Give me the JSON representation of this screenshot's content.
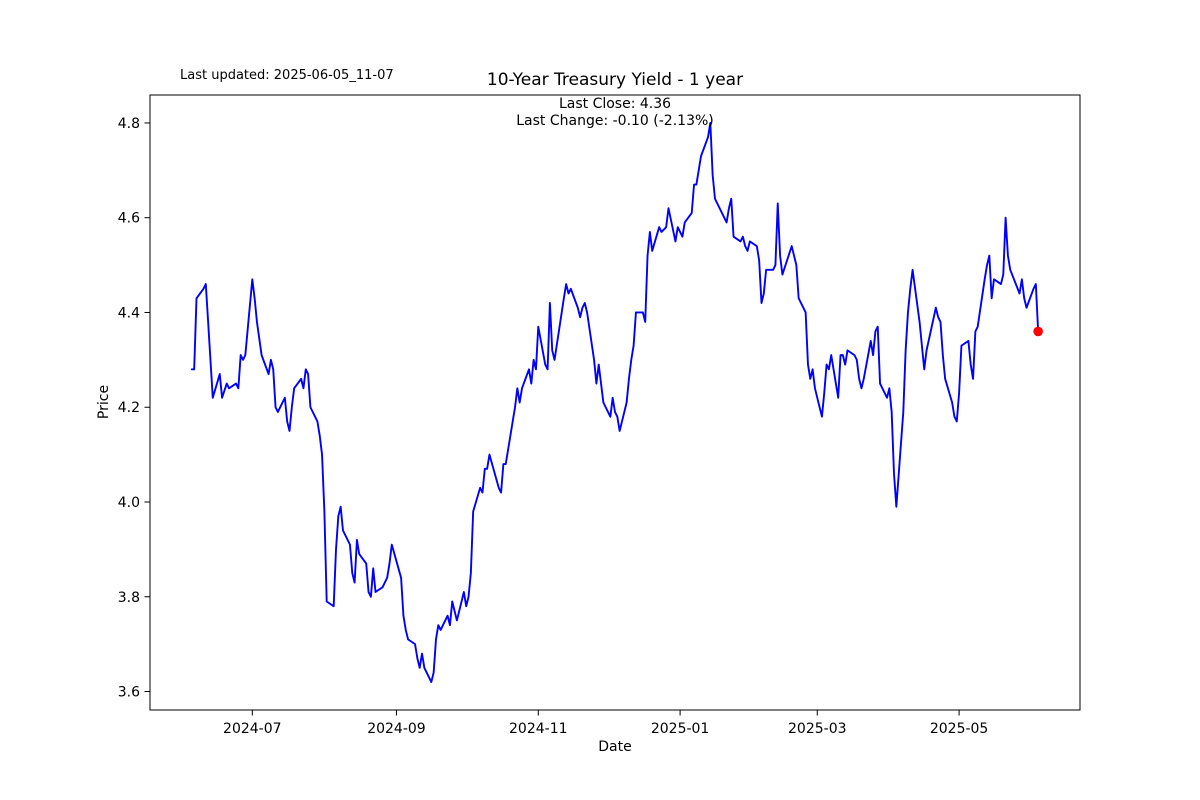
{
  "figure": {
    "last_updated": "Last updated: 2025-06-05_11-07",
    "title": "10-Year Treasury Yield - 1 year",
    "subtitle_line1": "Last Close: 4.36",
    "subtitle_line2": "Last Change: -0.10 (-2.13%)",
    "xlabel": "Date",
    "ylabel": "Price"
  },
  "chart_data": {
    "type": "line",
    "title": "10-Year Treasury Yield - 1 year",
    "xlabel": "Date",
    "ylabel": "Price",
    "grid": false,
    "legend": "none",
    "line_color": "#0000ff",
    "line_width": 1.9,
    "last_point_marker_color": "#ff0000",
    "spine_color": "#000000",
    "last_close": 4.36,
    "last_change_text": "-0.10 (-2.13%)",
    "ylim": [
      3.561,
      4.859
    ],
    "xlim": [
      "2024-05-18",
      "2025-06-22"
    ],
    "y_ticks": [
      3.6,
      3.8,
      4.0,
      4.2,
      4.4,
      4.6,
      4.8
    ],
    "x_ticks": [
      {
        "date": "2024-07-01",
        "label": "2024-07"
      },
      {
        "date": "2024-09-01",
        "label": "2024-09"
      },
      {
        "date": "2024-11-01",
        "label": "2024-11"
      },
      {
        "date": "2025-01-01",
        "label": "2025-01"
      },
      {
        "date": "2025-03-01",
        "label": "2025-03"
      },
      {
        "date": "2025-05-01",
        "label": "2025-05"
      }
    ],
    "series": [
      {
        "name": "10-Year Treasury Yield",
        "points": [
          [
            "2024-06-05",
            4.28
          ],
          [
            "2024-06-06",
            4.28
          ],
          [
            "2024-06-07",
            4.43
          ],
          [
            "2024-06-10",
            4.45
          ],
          [
            "2024-06-11",
            4.46
          ],
          [
            "2024-06-12",
            4.38
          ],
          [
            "2024-06-13",
            4.3
          ],
          [
            "2024-06-14",
            4.22
          ],
          [
            "2024-06-17",
            4.27
          ],
          [
            "2024-06-18",
            4.22
          ],
          [
            "2024-06-20",
            4.25
          ],
          [
            "2024-06-21",
            4.24
          ],
          [
            "2024-06-24",
            4.25
          ],
          [
            "2024-06-25",
            4.24
          ],
          [
            "2024-06-26",
            4.31
          ],
          [
            "2024-06-27",
            4.3
          ],
          [
            "2024-06-28",
            4.31
          ],
          [
            "2024-07-01",
            4.47
          ],
          [
            "2024-07-02",
            4.43
          ],
          [
            "2024-07-03",
            4.38
          ],
          [
            "2024-07-05",
            4.31
          ],
          [
            "2024-07-08",
            4.27
          ],
          [
            "2024-07-09",
            4.3
          ],
          [
            "2024-07-10",
            4.28
          ],
          [
            "2024-07-11",
            4.2
          ],
          [
            "2024-07-12",
            4.19
          ],
          [
            "2024-07-15",
            4.22
          ],
          [
            "2024-07-16",
            4.17
          ],
          [
            "2024-07-17",
            4.15
          ],
          [
            "2024-07-18",
            4.2
          ],
          [
            "2024-07-19",
            4.24
          ],
          [
            "2024-07-22",
            4.26
          ],
          [
            "2024-07-23",
            4.24
          ],
          [
            "2024-07-24",
            4.28
          ],
          [
            "2024-07-25",
            4.27
          ],
          [
            "2024-07-26",
            4.2
          ],
          [
            "2024-07-29",
            4.17
          ],
          [
            "2024-07-30",
            4.14
          ],
          [
            "2024-07-31",
            4.1
          ],
          [
            "2024-08-01",
            3.98
          ],
          [
            "2024-08-02",
            3.79
          ],
          [
            "2024-08-05",
            3.78
          ],
          [
            "2024-08-06",
            3.9
          ],
          [
            "2024-08-07",
            3.97
          ],
          [
            "2024-08-08",
            3.99
          ],
          [
            "2024-08-09",
            3.94
          ],
          [
            "2024-08-12",
            3.91
          ],
          [
            "2024-08-13",
            3.85
          ],
          [
            "2024-08-14",
            3.83
          ],
          [
            "2024-08-15",
            3.92
          ],
          [
            "2024-08-16",
            3.89
          ],
          [
            "2024-08-19",
            3.87
          ],
          [
            "2024-08-20",
            3.81
          ],
          [
            "2024-08-21",
            3.8
          ],
          [
            "2024-08-22",
            3.86
          ],
          [
            "2024-08-23",
            3.81
          ],
          [
            "2024-08-26",
            3.82
          ],
          [
            "2024-08-27",
            3.83
          ],
          [
            "2024-08-28",
            3.84
          ],
          [
            "2024-08-29",
            3.87
          ],
          [
            "2024-08-30",
            3.91
          ],
          [
            "2024-09-03",
            3.84
          ],
          [
            "2024-09-04",
            3.76
          ],
          [
            "2024-09-05",
            3.73
          ],
          [
            "2024-09-06",
            3.71
          ],
          [
            "2024-09-09",
            3.7
          ],
          [
            "2024-09-10",
            3.67
          ],
          [
            "2024-09-11",
            3.65
          ],
          [
            "2024-09-12",
            3.68
          ],
          [
            "2024-09-13",
            3.65
          ],
          [
            "2024-09-16",
            3.62
          ],
          [
            "2024-09-17",
            3.64
          ],
          [
            "2024-09-18",
            3.71
          ],
          [
            "2024-09-19",
            3.74
          ],
          [
            "2024-09-20",
            3.73
          ],
          [
            "2024-09-23",
            3.76
          ],
          [
            "2024-09-24",
            3.74
          ],
          [
            "2024-09-25",
            3.79
          ],
          [
            "2024-09-26",
            3.77
          ],
          [
            "2024-09-27",
            3.75
          ],
          [
            "2024-09-30",
            3.81
          ],
          [
            "2024-10-01",
            3.78
          ],
          [
            "2024-10-02",
            3.8
          ],
          [
            "2024-10-03",
            3.85
          ],
          [
            "2024-10-04",
            3.98
          ],
          [
            "2024-10-07",
            4.03
          ],
          [
            "2024-10-08",
            4.02
          ],
          [
            "2024-10-09",
            4.07
          ],
          [
            "2024-10-10",
            4.07
          ],
          [
            "2024-10-11",
            4.1
          ],
          [
            "2024-10-15",
            4.03
          ],
          [
            "2024-10-16",
            4.02
          ],
          [
            "2024-10-17",
            4.08
          ],
          [
            "2024-10-18",
            4.08
          ],
          [
            "2024-10-21",
            4.17
          ],
          [
            "2024-10-22",
            4.2
          ],
          [
            "2024-10-23",
            4.24
          ],
          [
            "2024-10-24",
            4.21
          ],
          [
            "2024-10-25",
            4.24
          ],
          [
            "2024-10-28",
            4.28
          ],
          [
            "2024-10-29",
            4.25
          ],
          [
            "2024-10-30",
            4.3
          ],
          [
            "2024-10-31",
            4.28
          ],
          [
            "2024-11-01",
            4.37
          ],
          [
            "2024-11-04",
            4.29
          ],
          [
            "2024-11-05",
            4.28
          ],
          [
            "2024-11-06",
            4.42
          ],
          [
            "2024-11-07",
            4.32
          ],
          [
            "2024-11-08",
            4.3
          ],
          [
            "2024-11-12",
            4.43
          ],
          [
            "2024-11-13",
            4.46
          ],
          [
            "2024-11-14",
            4.44
          ],
          [
            "2024-11-15",
            4.45
          ],
          [
            "2024-11-18",
            4.41
          ],
          [
            "2024-11-19",
            4.39
          ],
          [
            "2024-11-20",
            4.41
          ],
          [
            "2024-11-21",
            4.42
          ],
          [
            "2024-11-22",
            4.4
          ],
          [
            "2024-11-25",
            4.3
          ],
          [
            "2024-11-26",
            4.25
          ],
          [
            "2024-11-27",
            4.29
          ],
          [
            "2024-11-29",
            4.21
          ],
          [
            "2024-12-02",
            4.18
          ],
          [
            "2024-12-03",
            4.22
          ],
          [
            "2024-12-04",
            4.19
          ],
          [
            "2024-12-05",
            4.18
          ],
          [
            "2024-12-06",
            4.15
          ],
          [
            "2024-12-09",
            4.21
          ],
          [
            "2024-12-10",
            4.26
          ],
          [
            "2024-12-11",
            4.3
          ],
          [
            "2024-12-12",
            4.33
          ],
          [
            "2024-12-13",
            4.4
          ],
          [
            "2024-12-16",
            4.4
          ],
          [
            "2024-12-17",
            4.38
          ],
          [
            "2024-12-18",
            4.52
          ],
          [
            "2024-12-19",
            4.57
          ],
          [
            "2024-12-20",
            4.53
          ],
          [
            "2024-12-23",
            4.58
          ],
          [
            "2024-12-24",
            4.57
          ],
          [
            "2024-12-26",
            4.58
          ],
          [
            "2024-12-27",
            4.62
          ],
          [
            "2024-12-30",
            4.55
          ],
          [
            "2024-12-31",
            4.58
          ],
          [
            "2025-01-02",
            4.56
          ],
          [
            "2025-01-03",
            4.59
          ],
          [
            "2025-01-06",
            4.61
          ],
          [
            "2025-01-07",
            4.67
          ],
          [
            "2025-01-08",
            4.67
          ],
          [
            "2025-01-10",
            4.73
          ],
          [
            "2025-01-13",
            4.77
          ],
          [
            "2025-01-14",
            4.8
          ],
          [
            "2025-01-15",
            4.69
          ],
          [
            "2025-01-16",
            4.64
          ],
          [
            "2025-01-17",
            4.63
          ],
          [
            "2025-01-21",
            4.59
          ],
          [
            "2025-01-22",
            4.62
          ],
          [
            "2025-01-23",
            4.64
          ],
          [
            "2025-01-24",
            4.56
          ],
          [
            "2025-01-27",
            4.55
          ],
          [
            "2025-01-28",
            4.56
          ],
          [
            "2025-01-29",
            4.54
          ],
          [
            "2025-01-30",
            4.53
          ],
          [
            "2025-01-31",
            4.55
          ],
          [
            "2025-02-03",
            4.54
          ],
          [
            "2025-02-04",
            4.51
          ],
          [
            "2025-02-05",
            4.42
          ],
          [
            "2025-02-06",
            4.44
          ],
          [
            "2025-02-07",
            4.49
          ],
          [
            "2025-02-10",
            4.49
          ],
          [
            "2025-02-11",
            4.5
          ],
          [
            "2025-02-12",
            4.63
          ],
          [
            "2025-02-13",
            4.52
          ],
          [
            "2025-02-14",
            4.48
          ],
          [
            "2025-02-18",
            4.54
          ],
          [
            "2025-02-19",
            4.52
          ],
          [
            "2025-02-20",
            4.5
          ],
          [
            "2025-02-21",
            4.43
          ],
          [
            "2025-02-24",
            4.4
          ],
          [
            "2025-02-25",
            4.29
          ],
          [
            "2025-02-26",
            4.26
          ],
          [
            "2025-02-27",
            4.28
          ],
          [
            "2025-02-28",
            4.24
          ],
          [
            "2025-03-03",
            4.18
          ],
          [
            "2025-03-04",
            4.23
          ],
          [
            "2025-03-05",
            4.29
          ],
          [
            "2025-03-06",
            4.28
          ],
          [
            "2025-03-07",
            4.31
          ],
          [
            "2025-03-10",
            4.22
          ],
          [
            "2025-03-11",
            4.31
          ],
          [
            "2025-03-12",
            4.31
          ],
          [
            "2025-03-13",
            4.29
          ],
          [
            "2025-03-14",
            4.32
          ],
          [
            "2025-03-17",
            4.31
          ],
          [
            "2025-03-18",
            4.3
          ],
          [
            "2025-03-19",
            4.26
          ],
          [
            "2025-03-20",
            4.24
          ],
          [
            "2025-03-21",
            4.26
          ],
          [
            "2025-03-24",
            4.34
          ],
          [
            "2025-03-25",
            4.31
          ],
          [
            "2025-03-26",
            4.36
          ],
          [
            "2025-03-27",
            4.37
          ],
          [
            "2025-03-28",
            4.25
          ],
          [
            "2025-03-31",
            4.22
          ],
          [
            "2025-04-01",
            4.24
          ],
          [
            "2025-04-02",
            4.19
          ],
          [
            "2025-04-03",
            4.06
          ],
          [
            "2025-04-04",
            3.99
          ],
          [
            "2025-04-07",
            4.19
          ],
          [
            "2025-04-08",
            4.32
          ],
          [
            "2025-04-09",
            4.4
          ],
          [
            "2025-04-10",
            4.45
          ],
          [
            "2025-04-11",
            4.49
          ],
          [
            "2025-04-14",
            4.38
          ],
          [
            "2025-04-15",
            4.33
          ],
          [
            "2025-04-16",
            4.28
          ],
          [
            "2025-04-17",
            4.32
          ],
          [
            "2025-04-21",
            4.41
          ],
          [
            "2025-04-22",
            4.39
          ],
          [
            "2025-04-23",
            4.38
          ],
          [
            "2025-04-24",
            4.31
          ],
          [
            "2025-04-25",
            4.26
          ],
          [
            "2025-04-28",
            4.21
          ],
          [
            "2025-04-29",
            4.18
          ],
          [
            "2025-04-30",
            4.17
          ],
          [
            "2025-05-01",
            4.23
          ],
          [
            "2025-05-02",
            4.33
          ],
          [
            "2025-05-05",
            4.34
          ],
          [
            "2025-05-06",
            4.29
          ],
          [
            "2025-05-07",
            4.26
          ],
          [
            "2025-05-08",
            4.36
          ],
          [
            "2025-05-09",
            4.37
          ],
          [
            "2025-05-12",
            4.47
          ],
          [
            "2025-05-13",
            4.5
          ],
          [
            "2025-05-14",
            4.52
          ],
          [
            "2025-05-15",
            4.43
          ],
          [
            "2025-05-16",
            4.47
          ],
          [
            "2025-05-19",
            4.46
          ],
          [
            "2025-05-20",
            4.48
          ],
          [
            "2025-05-21",
            4.6
          ],
          [
            "2025-05-22",
            4.52
          ],
          [
            "2025-05-23",
            4.49
          ],
          [
            "2025-05-27",
            4.44
          ],
          [
            "2025-05-28",
            4.47
          ],
          [
            "2025-05-29",
            4.43
          ],
          [
            "2025-05-30",
            4.41
          ],
          [
            "2025-06-02",
            4.45
          ],
          [
            "2025-06-03",
            4.46
          ],
          [
            "2025-06-04",
            4.36
          ]
        ]
      }
    ]
  }
}
